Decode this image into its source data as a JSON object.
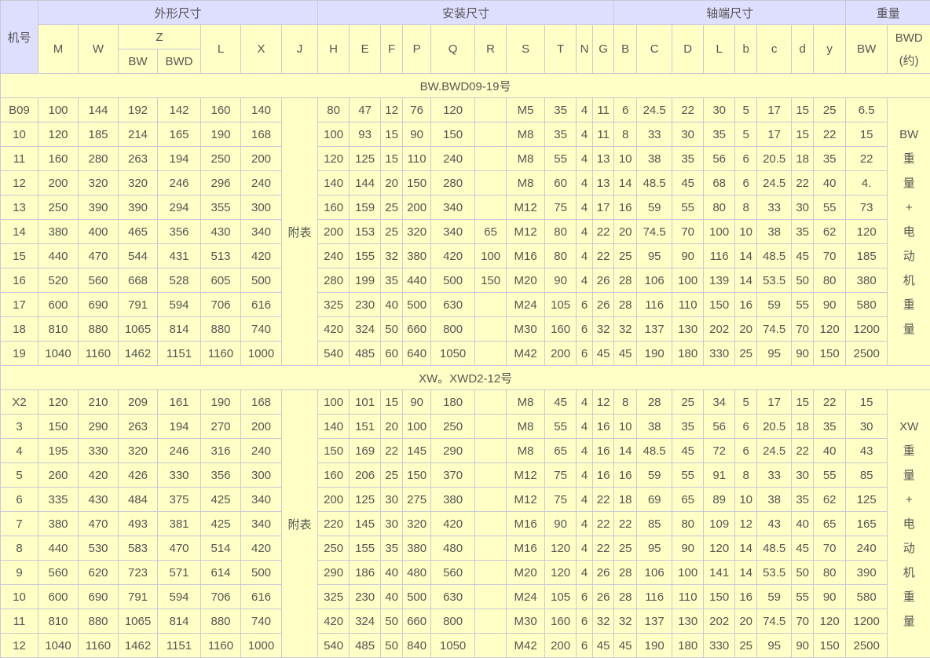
{
  "header": {
    "model": "机号",
    "groups": [
      "外形尺寸",
      "安装尺寸",
      "轴端尺寸",
      "重量"
    ],
    "outline_cols": [
      "M",
      "W"
    ],
    "z_label": "Z",
    "z_sub": [
      "BW",
      "BWD"
    ],
    "outline_cols2": [
      "L",
      "X",
      "J"
    ],
    "install_cols": [
      "H",
      "E",
      "F",
      "P",
      "Q",
      "R",
      "S",
      "T",
      "N",
      "G"
    ],
    "shaft_cols": [
      "B",
      "C",
      "D",
      "L",
      "b",
      "c",
      "d",
      "y"
    ],
    "weight_cols": [
      "BW",
      "BWD\n(约)"
    ]
  },
  "sections": [
    {
      "title": "BW.BWD09-19号",
      "j_value": "附表",
      "note": "BW重量+电动机重量",
      "rows": [
        [
          "B09",
          "100",
          "144",
          "192",
          "142",
          "160",
          "140",
          "80",
          "47",
          "12",
          "76",
          "120",
          "",
          "M5",
          "35",
          "4",
          "11",
          "6",
          "24.5",
          "22",
          "30",
          "5",
          "17",
          "15",
          "25",
          "6.5"
        ],
        [
          "10",
          "120",
          "185",
          "214",
          "165",
          "190",
          "168",
          "100",
          "93",
          "15",
          "90",
          "150",
          "",
          "M8",
          "35",
          "4",
          "11",
          "8",
          "33",
          "30",
          "35",
          "5",
          "17",
          "15",
          "22",
          "15"
        ],
        [
          "11",
          "160",
          "280",
          "263",
          "194",
          "250",
          "200",
          "120",
          "125",
          "15",
          "110",
          "240",
          "",
          "M8",
          "55",
          "4",
          "13",
          "10",
          "38",
          "35",
          "56",
          "6",
          "20.5",
          "18",
          "35",
          "22"
        ],
        [
          "12",
          "200",
          "320",
          "320",
          "246",
          "296",
          "240",
          "140",
          "144",
          "20",
          "150",
          "280",
          "",
          "M8",
          "60",
          "4",
          "13",
          "14",
          "48.5",
          "45",
          "68",
          "6",
          "24.5",
          "22",
          "40",
          "4."
        ],
        [
          "13",
          "250",
          "390",
          "390",
          "294",
          "355",
          "300",
          "160",
          "159",
          "25",
          "200",
          "340",
          "",
          "M12",
          "75",
          "4",
          "17",
          "16",
          "59",
          "55",
          "80",
          "8",
          "33",
          "30",
          "55",
          "73"
        ],
        [
          "14",
          "380",
          "400",
          "465",
          "356",
          "430",
          "340",
          "200",
          "153",
          "25",
          "320",
          "340",
          "65",
          "M12",
          "80",
          "4",
          "22",
          "20",
          "74.5",
          "70",
          "100",
          "10",
          "38",
          "35",
          "62",
          "120"
        ],
        [
          "15",
          "440",
          "470",
          "544",
          "431",
          "513",
          "420",
          "240",
          "155",
          "32",
          "380",
          "420",
          "100",
          "M16",
          "80",
          "4",
          "22",
          "25",
          "95",
          "90",
          "116",
          "14",
          "48.5",
          "45",
          "70",
          "185"
        ],
        [
          "16",
          "520",
          "560",
          "668",
          "528",
          "605",
          "500",
          "280",
          "199",
          "35",
          "440",
          "500",
          "150",
          "M20",
          "90",
          "4",
          "26",
          "28",
          "106",
          "100",
          "139",
          "14",
          "53.5",
          "50",
          "80",
          "380"
        ],
        [
          "17",
          "600",
          "690",
          "791",
          "594",
          "706",
          "616",
          "325",
          "230",
          "40",
          "500",
          "630",
          "",
          "M24",
          "105",
          "6",
          "26",
          "28",
          "116",
          "110",
          "150",
          "16",
          "59",
          "55",
          "90",
          "580"
        ],
        [
          "18",
          "810",
          "880",
          "1065",
          "814",
          "880",
          "740",
          "420",
          "324",
          "50",
          "660",
          "800",
          "",
          "M30",
          "160",
          "6",
          "32",
          "32",
          "137",
          "130",
          "202",
          "20",
          "74.5",
          "70",
          "120",
          "1200"
        ],
        [
          "19",
          "1040",
          "1160",
          "1462",
          "1151",
          "1160",
          "1000",
          "540",
          "485",
          "60",
          "640",
          "1050",
          "",
          "M42",
          "200",
          "6",
          "45",
          "45",
          "190",
          "180",
          "330",
          "25",
          "95",
          "90",
          "150",
          "2500"
        ]
      ]
    },
    {
      "title": "XW。XWD2-12号",
      "j_value": "附表",
      "note": "XW重量+电动机重量",
      "rows": [
        [
          "X2",
          "120",
          "210",
          "209",
          "161",
          "190",
          "168",
          "100",
          "101",
          "15",
          "90",
          "180",
          "",
          "M8",
          "45",
          "4",
          "12",
          "8",
          "28",
          "25",
          "34",
          "5",
          "17",
          "15",
          "22",
          "15"
        ],
        [
          "3",
          "150",
          "290",
          "263",
          "194",
          "270",
          "200",
          "140",
          "151",
          "20",
          "100",
          "250",
          "",
          "M8",
          "55",
          "4",
          "16",
          "10",
          "38",
          "35",
          "56",
          "6",
          "20.5",
          "18",
          "35",
          "30"
        ],
        [
          "4",
          "195",
          "330",
          "320",
          "246",
          "316",
          "240",
          "150",
          "169",
          "22",
          "145",
          "290",
          "",
          "M8",
          "65",
          "4",
          "16",
          "14",
          "48.5",
          "45",
          "72",
          "6",
          "24.5",
          "22",
          "40",
          "43"
        ],
        [
          "5",
          "260",
          "420",
          "426",
          "330",
          "356",
          "300",
          "160",
          "206",
          "25",
          "150",
          "370",
          "",
          "M12",
          "75",
          "4",
          "16",
          "16",
          "59",
          "55",
          "91",
          "8",
          "33",
          "30",
          "55",
          "85"
        ],
        [
          "6",
          "335",
          "430",
          "484",
          "375",
          "425",
          "340",
          "200",
          "125",
          "30",
          "275",
          "380",
          "",
          "M12",
          "75",
          "4",
          "22",
          "18",
          "69",
          "65",
          "89",
          "10",
          "38",
          "35",
          "62",
          "125"
        ],
        [
          "7",
          "380",
          "470",
          "493",
          "381",
          "425",
          "340",
          "220",
          "145",
          "30",
          "320",
          "420",
          "",
          "M16",
          "90",
          "4",
          "22",
          "22",
          "85",
          "80",
          "109",
          "12",
          "43",
          "40",
          "65",
          "165"
        ],
        [
          "8",
          "440",
          "530",
          "583",
          "470",
          "514",
          "420",
          "250",
          "155",
          "35",
          "380",
          "480",
          "",
          "M16",
          "120",
          "4",
          "22",
          "25",
          "95",
          "90",
          "120",
          "14",
          "48.5",
          "45",
          "70",
          "240"
        ],
        [
          "9",
          "560",
          "620",
          "723",
          "571",
          "614",
          "500",
          "290",
          "186",
          "40",
          "480",
          "560",
          "",
          "M20",
          "120",
          "4",
          "26",
          "28",
          "106",
          "100",
          "141",
          "14",
          "53.5",
          "50",
          "80",
          "390"
        ],
        [
          "10",
          "600",
          "690",
          "791",
          "594",
          "706",
          "616",
          "325",
          "230",
          "40",
          "500",
          "630",
          "",
          "M24",
          "105",
          "6",
          "26",
          "28",
          "116",
          "110",
          "150",
          "16",
          "59",
          "55",
          "90",
          "580"
        ],
        [
          "11",
          "810",
          "880",
          "1065",
          "814",
          "880",
          "740",
          "420",
          "324",
          "50",
          "660",
          "800",
          "",
          "M30",
          "160",
          "6",
          "32",
          "32",
          "137",
          "130",
          "202",
          "20",
          "74.5",
          "70",
          "120",
          "1200"
        ],
        [
          "12",
          "1040",
          "1160",
          "1462",
          "1151",
          "1160",
          "1000",
          "540",
          "485",
          "50",
          "840",
          "1050",
          "",
          "M42",
          "200",
          "6",
          "45",
          "45",
          "190",
          "180",
          "330",
          "25",
          "95",
          "90",
          "150",
          "2500"
        ]
      ]
    }
  ],
  "colors": {
    "header_bg": "#dedeff",
    "cell_bg": "#ffffc6",
    "border": "#c8c8d6",
    "text": "#555555"
  }
}
